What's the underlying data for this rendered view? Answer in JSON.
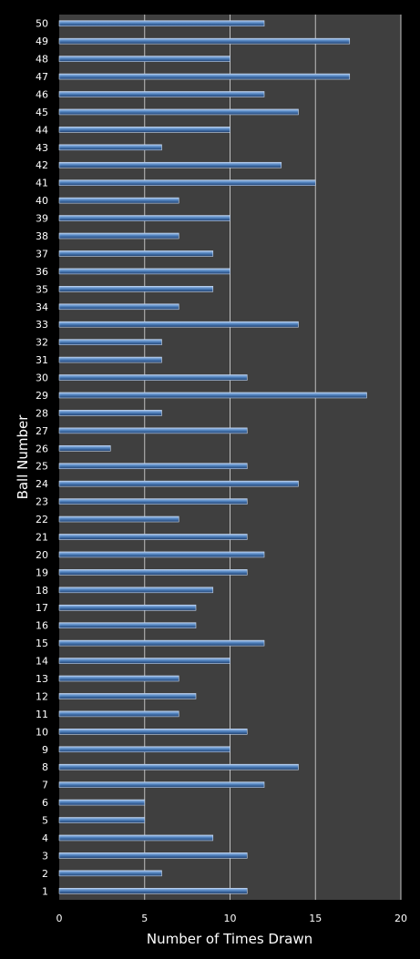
{
  "chart_data": {
    "type": "bar",
    "orientation": "horizontal",
    "title": "",
    "xlabel": "Number of Times Drawn",
    "ylabel": "Ball Number",
    "xlim": [
      0,
      20
    ],
    "xticks": [
      0,
      5,
      10,
      15,
      20
    ],
    "grid": "vertical",
    "legend": "none",
    "colors": {
      "background": "#000000",
      "plot_area": "#3f3f3f",
      "bar": "#4f81bd",
      "gridline": "#bfbfbf",
      "text": "#ffffff"
    },
    "categories": [
      "1",
      "2",
      "3",
      "4",
      "5",
      "6",
      "7",
      "8",
      "9",
      "10",
      "11",
      "12",
      "13",
      "14",
      "15",
      "16",
      "17",
      "18",
      "19",
      "20",
      "21",
      "22",
      "23",
      "24",
      "25",
      "26",
      "27",
      "28",
      "29",
      "30",
      "31",
      "32",
      "33",
      "34",
      "35",
      "36",
      "37",
      "38",
      "39",
      "40",
      "41",
      "42",
      "43",
      "44",
      "45",
      "46",
      "47",
      "48",
      "49",
      "50"
    ],
    "values": [
      11,
      6,
      11,
      9,
      5,
      5,
      12,
      14,
      10,
      11,
      7,
      8,
      7,
      10,
      12,
      8,
      8,
      9,
      11,
      12,
      11,
      7,
      11,
      14,
      11,
      3,
      11,
      6,
      18,
      11,
      6,
      6,
      14,
      7,
      9,
      10,
      9,
      7,
      10,
      7,
      15,
      13,
      6,
      10,
      14,
      12,
      17,
      10,
      17,
      12
    ]
  }
}
